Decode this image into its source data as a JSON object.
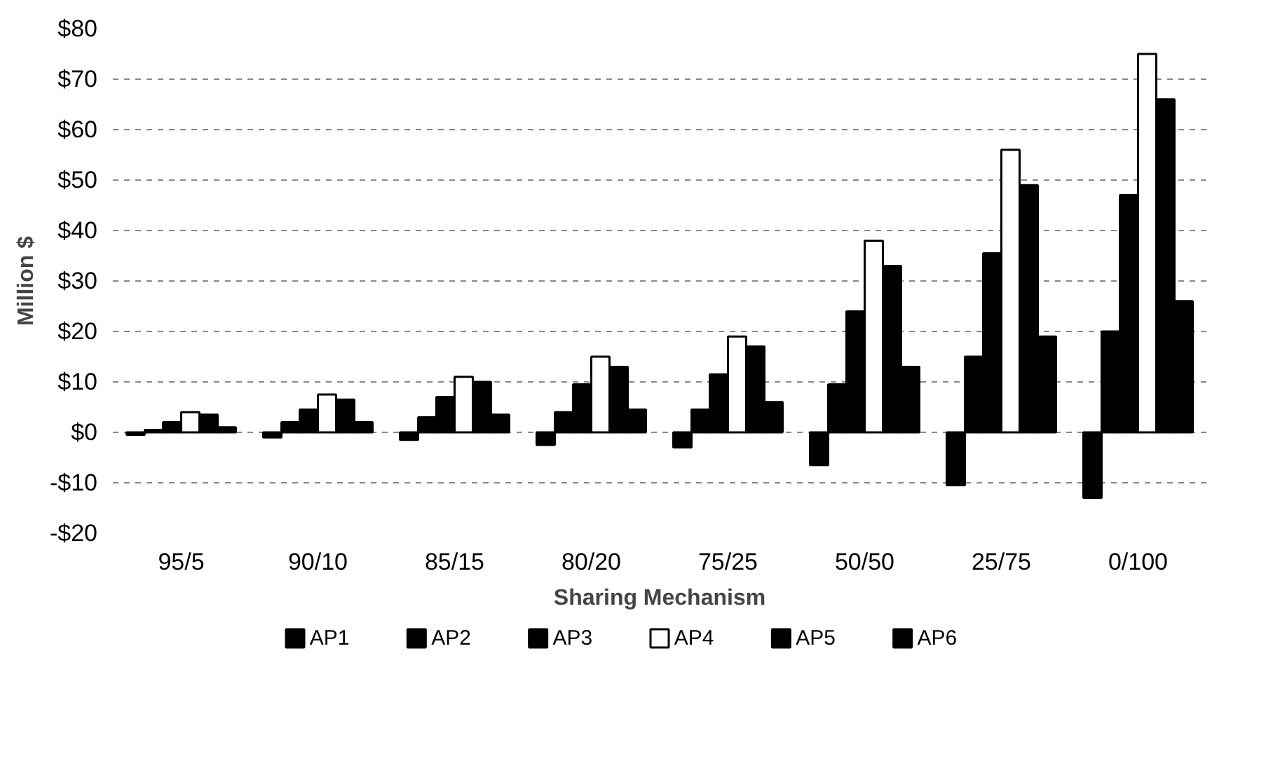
{
  "chart_data": {
    "type": "bar",
    "xlabel": "Sharing Mechanism",
    "ylabel": "Million $",
    "categories": [
      "95/5",
      "90/10",
      "85/15",
      "80/20",
      "75/25",
      "50/50",
      "25/75",
      "0/100"
    ],
    "series": [
      {
        "name": "AP1",
        "color": "#000000",
        "values": [
          -0.5,
          -1,
          -1.5,
          -2.5,
          -3,
          -6.5,
          -10.5,
          -13
        ]
      },
      {
        "name": "AP2",
        "color": "#000000",
        "values": [
          0.5,
          2,
          3,
          4,
          4.5,
          9.5,
          15,
          20
        ]
      },
      {
        "name": "AP3",
        "color": "#000000",
        "values": [
          2,
          4.5,
          7,
          9.5,
          11.5,
          24,
          35.5,
          47
        ]
      },
      {
        "name": "AP4",
        "color": "#ffffff",
        "values": [
          4,
          7.5,
          11,
          15,
          19,
          38,
          56,
          75
        ]
      },
      {
        "name": "AP5",
        "color": "#000000",
        "values": [
          3.5,
          6.5,
          10,
          13,
          17,
          33,
          49,
          66
        ]
      },
      {
        "name": "AP6",
        "color": "#000000",
        "values": [
          1,
          2,
          3.5,
          4.5,
          6,
          13,
          19,
          26
        ]
      }
    ],
    "ylim": [
      -20,
      80
    ],
    "yticks": [
      {
        "value": -20,
        "label": "-$20"
      },
      {
        "value": -10,
        "label": "-$10"
      },
      {
        "value": 0,
        "label": "$0"
      },
      {
        "value": 10,
        "label": "$10"
      },
      {
        "value": 20,
        "label": "$20"
      },
      {
        "value": 30,
        "label": "$30"
      },
      {
        "value": 40,
        "label": "$40"
      },
      {
        "value": 50,
        "label": "$50"
      },
      {
        "value": 60,
        "label": "$60"
      },
      {
        "value": 70,
        "label": "$70"
      },
      {
        "value": 80,
        "label": "$80"
      }
    ],
    "grid": "y",
    "legend": "bottom"
  }
}
